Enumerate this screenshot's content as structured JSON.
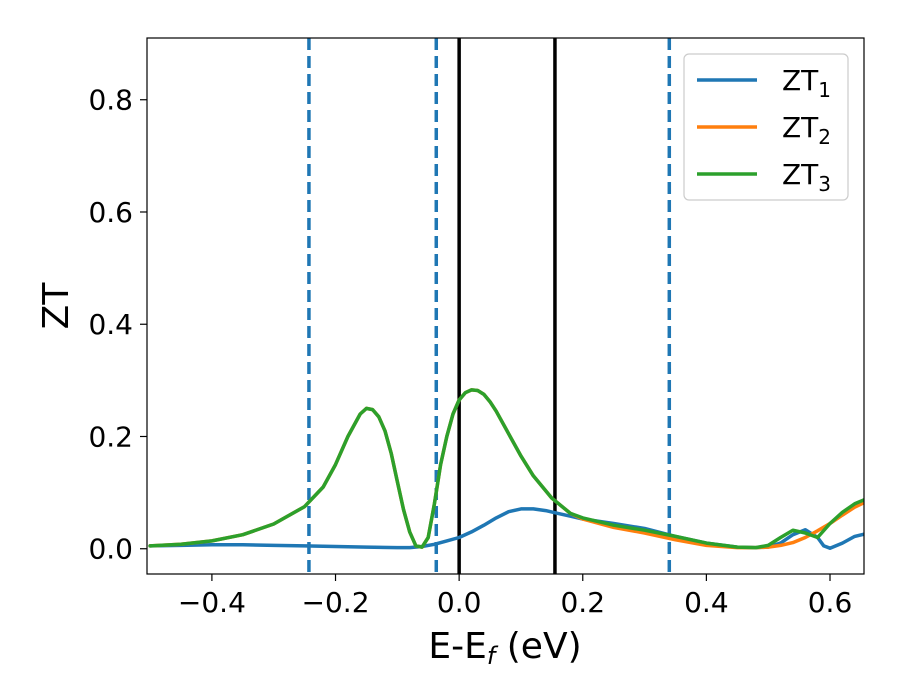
{
  "chart_data": {
    "type": "line",
    "xlabel": "E-E",
    "xlabel_sub": "f",
    "xlabel_suffix": " (eV)",
    "ylabel": "ZT",
    "xlim": [
      -0.505,
      0.655
    ],
    "ylim": [
      -0.045,
      0.91
    ],
    "xticks": [
      -0.4,
      -0.2,
      0.0,
      0.2,
      0.4,
      0.6
    ],
    "xtick_labels": [
      "−0.4",
      "−0.2",
      "0.0",
      "0.2",
      "0.4",
      "0.6"
    ],
    "yticks": [
      0.0,
      0.2,
      0.4,
      0.6,
      0.8
    ],
    "ytick_labels": [
      "0.0",
      "0.2",
      "0.4",
      "0.6",
      "0.8"
    ],
    "grid": false,
    "legend_position": "top-right",
    "series": [
      {
        "name": "ZT",
        "name_sub": "1",
        "color": "#1f77b4",
        "x": [
          -0.5,
          -0.45,
          -0.4,
          -0.35,
          -0.3,
          -0.25,
          -0.2,
          -0.15,
          -0.1,
          -0.08,
          -0.06,
          -0.04,
          -0.02,
          0.0,
          0.02,
          0.04,
          0.06,
          0.08,
          0.1,
          0.12,
          0.14,
          0.16,
          0.18,
          0.2,
          0.25,
          0.3,
          0.35,
          0.4,
          0.45,
          0.48,
          0.5,
          0.52,
          0.54,
          0.56,
          0.58,
          0.59,
          0.6,
          0.62,
          0.64,
          0.655
        ],
        "y": [
          0.005,
          0.006,
          0.007,
          0.007,
          0.006,
          0.005,
          0.004,
          0.003,
          0.002,
          0.002,
          0.004,
          0.008,
          0.014,
          0.02,
          0.03,
          0.042,
          0.055,
          0.066,
          0.071,
          0.071,
          0.068,
          0.063,
          0.058,
          0.053,
          0.045,
          0.036,
          0.022,
          0.01,
          0.003,
          0.002,
          0.003,
          0.01,
          0.025,
          0.034,
          0.02,
          0.005,
          0.001,
          0.01,
          0.022,
          0.026
        ]
      },
      {
        "name": "ZT",
        "name_sub": "2",
        "color": "#ff7f0e",
        "x": [
          -0.5,
          -0.45,
          -0.4,
          -0.35,
          -0.3,
          -0.25,
          -0.22,
          -0.2,
          -0.18,
          -0.16,
          -0.15,
          -0.14,
          -0.13,
          -0.12,
          -0.11,
          -0.1,
          -0.09,
          -0.08,
          -0.07,
          -0.06,
          -0.05,
          -0.04,
          -0.03,
          -0.02,
          -0.01,
          0.0,
          0.01,
          0.02,
          0.03,
          0.04,
          0.05,
          0.06,
          0.08,
          0.1,
          0.12,
          0.15,
          0.18,
          0.2,
          0.25,
          0.3,
          0.35,
          0.4,
          0.45,
          0.48,
          0.5,
          0.52,
          0.54,
          0.56,
          0.58,
          0.6,
          0.62,
          0.64,
          0.655
        ],
        "y": [
          0.005,
          0.008,
          0.014,
          0.025,
          0.044,
          0.075,
          0.11,
          0.15,
          0.2,
          0.24,
          0.25,
          0.248,
          0.235,
          0.21,
          0.17,
          0.12,
          0.07,
          0.03,
          0.005,
          0.003,
          0.02,
          0.08,
          0.15,
          0.2,
          0.24,
          0.265,
          0.278,
          0.283,
          0.282,
          0.275,
          0.262,
          0.245,
          0.205,
          0.165,
          0.13,
          0.09,
          0.063,
          0.053,
          0.038,
          0.028,
          0.016,
          0.006,
          0.002,
          0.002,
          0.003,
          0.006,
          0.011,
          0.02,
          0.032,
          0.045,
          0.06,
          0.074,
          0.082
        ]
      },
      {
        "name": "ZT",
        "name_sub": "3",
        "color": "#2ca02c",
        "x": [
          -0.5,
          -0.45,
          -0.4,
          -0.35,
          -0.3,
          -0.25,
          -0.22,
          -0.2,
          -0.18,
          -0.16,
          -0.15,
          -0.14,
          -0.13,
          -0.12,
          -0.11,
          -0.1,
          -0.09,
          -0.08,
          -0.07,
          -0.06,
          -0.05,
          -0.04,
          -0.03,
          -0.02,
          -0.01,
          0.0,
          0.01,
          0.02,
          0.03,
          0.04,
          0.05,
          0.06,
          0.08,
          0.1,
          0.12,
          0.15,
          0.18,
          0.2,
          0.25,
          0.3,
          0.35,
          0.4,
          0.45,
          0.48,
          0.5,
          0.52,
          0.54,
          0.56,
          0.58,
          0.6,
          0.62,
          0.64,
          0.655
        ],
        "y": [
          0.005,
          0.008,
          0.014,
          0.025,
          0.044,
          0.075,
          0.11,
          0.15,
          0.2,
          0.24,
          0.25,
          0.248,
          0.235,
          0.21,
          0.17,
          0.12,
          0.07,
          0.03,
          0.005,
          0.003,
          0.02,
          0.08,
          0.15,
          0.2,
          0.24,
          0.265,
          0.278,
          0.283,
          0.282,
          0.275,
          0.262,
          0.245,
          0.205,
          0.165,
          0.13,
          0.09,
          0.063,
          0.055,
          0.042,
          0.033,
          0.022,
          0.01,
          0.003,
          0.002,
          0.006,
          0.02,
          0.033,
          0.028,
          0.02,
          0.045,
          0.065,
          0.08,
          0.087
        ]
      }
    ],
    "vlines": [
      {
        "x": -0.243,
        "style": "dashed",
        "color": "#1f77b4"
      },
      {
        "x": -0.037,
        "style": "dashed",
        "color": "#1f77b4"
      },
      {
        "x": 0.34,
        "style": "dashed",
        "color": "#1f77b4"
      },
      {
        "x": 0.0,
        "style": "solid",
        "color": "#000000"
      },
      {
        "x": 0.155,
        "style": "solid",
        "color": "#000000"
      }
    ]
  }
}
